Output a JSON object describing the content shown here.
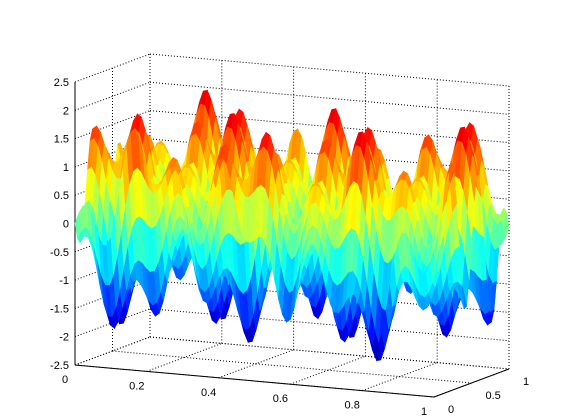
{
  "chart_data": {
    "type": "surface",
    "title": "",
    "xlabel": "",
    "ylabel": "",
    "zlabel": "",
    "colormap": "jet",
    "shading": "interp",
    "grid": true,
    "function": "z = sin(4πx + 3πy)·cos(12πx − πy) + sin(2πx − 6πy)",
    "x_range": [
      0,
      1
    ],
    "y_range": [
      0,
      1
    ],
    "z_range": [
      -2.5,
      2.5
    ],
    "x_ticks": [
      {
        "value": 0,
        "label": "0"
      },
      {
        "value": 0.2,
        "label": "0.2"
      },
      {
        "value": 0.4,
        "label": "0.4"
      },
      {
        "value": 0.6,
        "label": "0.6"
      },
      {
        "value": 0.8,
        "label": "0.8"
      },
      {
        "value": 1,
        "label": "1"
      }
    ],
    "y_ticks": [
      {
        "value": 0,
        "label": "0"
      },
      {
        "value": 0.5,
        "label": "0.5"
      },
      {
        "value": 1,
        "label": "1"
      }
    ],
    "z_ticks": [
      {
        "value": 2.5,
        "label": "2.5"
      },
      {
        "value": 2,
        "label": "2"
      },
      {
        "value": 1.5,
        "label": "1.5"
      },
      {
        "value": 1,
        "label": "1"
      },
      {
        "value": 0.5,
        "label": "0.5"
      },
      {
        "value": 0,
        "label": "0"
      },
      {
        "value": -0.5,
        "label": "-0.5"
      },
      {
        "value": -1,
        "label": "-1"
      },
      {
        "value": -1.5,
        "label": "-1.5"
      },
      {
        "value": -2,
        "label": "-2"
      },
      {
        "value": -2.5,
        "label": "-2.5"
      }
    ]
  }
}
